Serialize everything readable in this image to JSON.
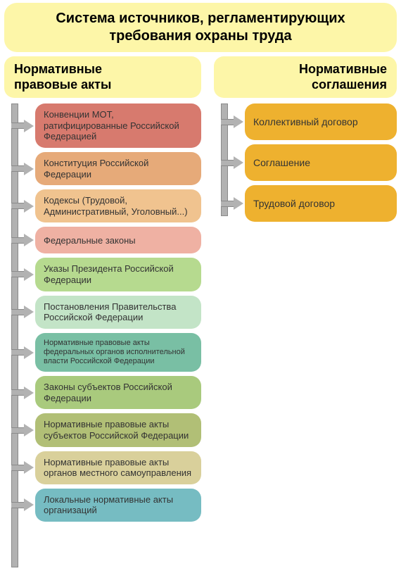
{
  "title": {
    "line1": "Система источников, регламентирующих",
    "line2": "требования охраны труда",
    "fontsize": 20,
    "bg": "#fdf6a8"
  },
  "left": {
    "header": {
      "line1": "Нормативные",
      "line2": "правовые акты",
      "fontsize": 18,
      "bg": "#fdf6a8"
    },
    "spine_height": 659,
    "items": [
      {
        "text": "Конвенции МОТ, ратифицированные Российской Федерацией",
        "bg": "#d77a6e",
        "fontsize": 13
      },
      {
        "text": "Конституция Российской Федерации",
        "bg": "#e6aa79",
        "fontsize": 13
      },
      {
        "text": "Кодексы (Трудовой, Административный, Уголовный...)",
        "bg": "#f0c38f",
        "fontsize": 13
      },
      {
        "text": "Федеральные законы",
        "bg": "#efb1a3",
        "fontsize": 13
      },
      {
        "text": "Указы Президента Российской Федерации",
        "bg": "#b6da8f",
        "fontsize": 13
      },
      {
        "text": "Постановления Правительства Российской Федерации",
        "bg": "#c3e4c7",
        "fontsize": 13
      },
      {
        "text": "Нормативные правовые акты федеральных органов исполнительной власти Российской Федерации",
        "bg": "#79bfa4",
        "fontsize": 11
      },
      {
        "text": "Законы субъектов Российской Федерации",
        "bg": "#a9ca7d",
        "fontsize": 13
      },
      {
        "text": "Нормативные правовые акты субъектов Российской Федерации",
        "bg": "#b1bf76",
        "fontsize": 13
      },
      {
        "text": "Нормативные правовые акты органов местного самоуправления",
        "bg": "#d9d09b",
        "fontsize": 13
      },
      {
        "text": "Локальные нормативные акты организаций",
        "bg": "#76bcc2",
        "fontsize": 13
      }
    ]
  },
  "right": {
    "header": {
      "line1": "Нормативные",
      "line2": "соглашения",
      "fontsize": 18,
      "bg": "#fdf6a8"
    },
    "spine_height": 160,
    "items": [
      {
        "text": "Коллективный договор",
        "bg": "#eeb12f",
        "fontsize": 14
      },
      {
        "text": "Соглашение",
        "bg": "#eeb12f",
        "fontsize": 14
      },
      {
        "text": "Трудовой договор",
        "bg": "#eeb12f",
        "fontsize": 14
      }
    ]
  },
  "style": {
    "header_bg": "#fdf6a8",
    "spine_color": "#b2b2b2",
    "spine_border": "#8a8a8a",
    "border_radius": 14,
    "box_text_color": "#333333",
    "page_bg": "#ffffff"
  }
}
